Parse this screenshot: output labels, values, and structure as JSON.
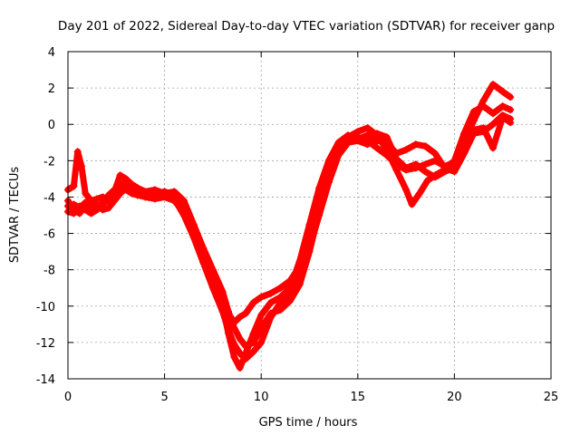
{
  "chart_data": {
    "type": "scatter",
    "title": "Day 201 of 2022, Sidereal Day-to-day VTEC variation (SDTVAR) for receiver ganp",
    "xlabel": "GPS time / hours",
    "ylabel": "SDTVAR / TECUs",
    "xlim": [
      0,
      25
    ],
    "ylim": [
      -14,
      4
    ],
    "xticks": [
      0,
      5,
      10,
      15,
      20,
      25
    ],
    "yticks": [
      -14,
      -12,
      -10,
      -8,
      -6,
      -4,
      -2,
      0,
      2,
      4
    ],
    "grid": true,
    "marker": "plus",
    "color": "#ff0000",
    "series": [
      {
        "points": [
          [
            0,
            -4.5
          ],
          [
            0.3,
            -4.4
          ],
          [
            0.6,
            -4.6
          ],
          [
            0.9,
            -4.3
          ],
          [
            1.2,
            -4.5
          ],
          [
            1.5,
            -4.4
          ],
          [
            1.8,
            -4.7
          ],
          [
            2.1,
            -4.6
          ],
          [
            2.4,
            -4.2
          ],
          [
            2.7,
            -3.8
          ],
          [
            3.0,
            -3.5
          ],
          [
            3.3,
            -3.6
          ],
          [
            3.6,
            -3.7
          ],
          [
            4.0,
            -3.9
          ],
          [
            4.5,
            -3.8
          ],
          [
            5.0,
            -3.7
          ],
          [
            5.5,
            -3.9
          ],
          [
            6.0,
            -4.5
          ],
          [
            6.5,
            -5.8
          ],
          [
            7.0,
            -7.2
          ],
          [
            7.5,
            -8.5
          ],
          [
            8.0,
            -10.0
          ],
          [
            8.3,
            -11.5
          ],
          [
            8.6,
            -12.8
          ],
          [
            8.9,
            -13.4
          ],
          [
            9.2,
            -12.6
          ],
          [
            9.6,
            -11.5
          ],
          [
            10.0,
            -10.5
          ],
          [
            10.5,
            -9.8
          ],
          [
            11.0,
            -9.5
          ],
          [
            11.5,
            -9.0
          ],
          [
            12.0,
            -7.5
          ],
          [
            12.5,
            -5.5
          ],
          [
            13.0,
            -3.5
          ],
          [
            13.5,
            -2.0
          ],
          [
            14.0,
            -1.0
          ],
          [
            14.5,
            -0.6
          ],
          [
            15.0,
            -0.7
          ],
          [
            15.5,
            -0.9
          ],
          [
            16.0,
            -1.3
          ],
          [
            16.5,
            -1.7
          ],
          [
            17.0,
            -2.2
          ],
          [
            17.5,
            -2.5
          ],
          [
            18.0,
            -2.4
          ],
          [
            18.5,
            -2.2
          ],
          [
            19.0,
            -2.0
          ],
          [
            19.5,
            -2.3
          ],
          [
            20.0,
            -2.1
          ],
          [
            20.5,
            -1.0
          ],
          [
            21.0,
            0.2
          ],
          [
            21.5,
            1.3
          ],
          [
            22.0,
            2.2
          ],
          [
            22.5,
            1.8
          ],
          [
            22.9,
            1.5
          ]
        ]
      },
      {
        "points": [
          [
            0,
            -3.6
          ],
          [
            0.3,
            -3.4
          ],
          [
            0.5,
            -1.5
          ],
          [
            0.7,
            -2.3
          ],
          [
            0.9,
            -3.8
          ],
          [
            1.2,
            -4.2
          ],
          [
            1.5,
            -4.1
          ],
          [
            1.8,
            -4.0
          ],
          [
            2.1,
            -4.2
          ],
          [
            2.4,
            -3.7
          ],
          [
            2.7,
            -2.8
          ],
          [
            3.0,
            -3.0
          ],
          [
            3.3,
            -3.3
          ],
          [
            3.6,
            -3.5
          ],
          [
            4.0,
            -3.7
          ],
          [
            4.5,
            -3.6
          ],
          [
            5.0,
            -3.8
          ],
          [
            5.5,
            -3.7
          ],
          [
            6.0,
            -4.2
          ],
          [
            6.5,
            -5.5
          ],
          [
            7.0,
            -6.8
          ],
          [
            7.5,
            -8.0
          ],
          [
            8.0,
            -9.2
          ],
          [
            8.3,
            -10.3
          ],
          [
            8.6,
            -11.2
          ],
          [
            8.9,
            -11.8
          ],
          [
            9.2,
            -12.2
          ],
          [
            9.6,
            -12.0
          ],
          [
            10.0,
            -11.2
          ],
          [
            10.5,
            -10.4
          ],
          [
            11.0,
            -10.2
          ],
          [
            11.5,
            -9.7
          ],
          [
            12.0,
            -8.8
          ],
          [
            12.5,
            -7.0
          ],
          [
            13.0,
            -4.8
          ],
          [
            13.5,
            -2.5
          ],
          [
            14.0,
            -1.2
          ],
          [
            14.5,
            -0.7
          ],
          [
            15.0,
            -0.4
          ],
          [
            15.5,
            -0.2
          ],
          [
            16.0,
            -0.6
          ],
          [
            16.5,
            -1.4
          ],
          [
            17.0,
            -2.5
          ],
          [
            17.5,
            -3.6
          ],
          [
            17.8,
            -4.4
          ],
          [
            18.2,
            -3.8
          ],
          [
            18.6,
            -3.1
          ],
          [
            19.0,
            -2.8
          ],
          [
            19.5,
            -2.5
          ],
          [
            20.0,
            -2.0
          ],
          [
            20.5,
            -0.5
          ],
          [
            21.0,
            0.7
          ],
          [
            21.5,
            1.0
          ],
          [
            22.0,
            0.6
          ],
          [
            22.5,
            1.0
          ],
          [
            22.9,
            0.8
          ]
        ]
      },
      {
        "points": [
          [
            0,
            -4.2
          ],
          [
            0.3,
            -4.7
          ],
          [
            0.6,
            -4.9
          ],
          [
            0.9,
            -4.5
          ],
          [
            1.2,
            -4.4
          ],
          [
            1.5,
            -4.6
          ],
          [
            1.8,
            -4.3
          ],
          [
            2.1,
            -3.9
          ],
          [
            2.4,
            -3.6
          ],
          [
            2.7,
            -3.3
          ],
          [
            3.0,
            -3.2
          ],
          [
            3.3,
            -3.4
          ],
          [
            3.6,
            -3.6
          ],
          [
            4.0,
            -3.8
          ],
          [
            4.5,
            -4.0
          ],
          [
            5.0,
            -3.9
          ],
          [
            5.5,
            -4.1
          ],
          [
            6.0,
            -5.0
          ],
          [
            6.5,
            -6.2
          ],
          [
            7.0,
            -7.6
          ],
          [
            7.5,
            -9.0
          ],
          [
            8.0,
            -10.3
          ],
          [
            8.3,
            -11.3
          ],
          [
            8.6,
            -12.1
          ],
          [
            8.9,
            -12.6
          ],
          [
            9.2,
            -12.9
          ],
          [
            9.6,
            -12.5
          ],
          [
            10.0,
            -12.0
          ],
          [
            10.5,
            -10.6
          ],
          [
            11.0,
            -9.8
          ],
          [
            11.5,
            -9.2
          ],
          [
            12.0,
            -8.2
          ],
          [
            12.5,
            -6.2
          ],
          [
            13.0,
            -4.2
          ],
          [
            13.5,
            -2.8
          ],
          [
            14.0,
            -1.6
          ],
          [
            14.5,
            -0.9
          ],
          [
            15.0,
            -0.8
          ],
          [
            15.5,
            -0.6
          ],
          [
            16.0,
            -0.9
          ],
          [
            16.5,
            -1.0
          ],
          [
            17.0,
            -1.6
          ],
          [
            17.5,
            -1.4
          ],
          [
            18.0,
            -1.1
          ],
          [
            18.5,
            -1.2
          ],
          [
            19.0,
            -1.6
          ],
          [
            19.5,
            -2.4
          ],
          [
            20.0,
            -2.6
          ],
          [
            20.5,
            -1.6
          ],
          [
            21.0,
            -0.5
          ],
          [
            21.5,
            -0.4
          ],
          [
            22.0,
            0.0
          ],
          [
            22.5,
            0.5
          ],
          [
            22.9,
            0.3
          ]
        ]
      },
      {
        "points": [
          [
            0,
            -4.8
          ],
          [
            0.3,
            -4.9
          ],
          [
            0.6,
            -4.5
          ],
          [
            0.9,
            -4.7
          ],
          [
            1.2,
            -4.9
          ],
          [
            1.5,
            -4.7
          ],
          [
            1.8,
            -4.4
          ],
          [
            2.1,
            -4.1
          ],
          [
            2.4,
            -3.8
          ],
          [
            2.7,
            -3.6
          ],
          [
            3.0,
            -3.6
          ],
          [
            3.3,
            -3.8
          ],
          [
            3.6,
            -3.9
          ],
          [
            4.0,
            -4.0
          ],
          [
            4.5,
            -4.1
          ],
          [
            5.0,
            -4.0
          ],
          [
            5.5,
            -4.2
          ],
          [
            6.0,
            -4.8
          ],
          [
            6.5,
            -6.0
          ],
          [
            7.0,
            -7.3
          ],
          [
            7.5,
            -8.7
          ],
          [
            8.0,
            -9.6
          ],
          [
            8.3,
            -10.4
          ],
          [
            8.6,
            -10.9
          ],
          [
            8.9,
            -10.6
          ],
          [
            9.2,
            -10.4
          ],
          [
            9.6,
            -9.8
          ],
          [
            10.0,
            -9.5
          ],
          [
            10.5,
            -9.3
          ],
          [
            11.0,
            -9.0
          ],
          [
            11.5,
            -8.6
          ],
          [
            12.0,
            -7.8
          ],
          [
            12.5,
            -6.8
          ],
          [
            13.0,
            -5.0
          ],
          [
            13.5,
            -3.2
          ],
          [
            14.0,
            -1.7
          ],
          [
            14.5,
            -1.0
          ],
          [
            15.0,
            -0.9
          ],
          [
            15.5,
            -1.1
          ],
          [
            16.0,
            -0.5
          ],
          [
            16.5,
            -0.7
          ],
          [
            17.0,
            -1.9
          ],
          [
            17.5,
            -2.4
          ],
          [
            18.0,
            -2.2
          ],
          [
            18.5,
            -2.6
          ],
          [
            19.0,
            -2.9
          ],
          [
            19.5,
            -2.6
          ],
          [
            20.0,
            -2.4
          ],
          [
            20.5,
            -0.8
          ],
          [
            21.0,
            -0.3
          ],
          [
            21.5,
            -0.2
          ],
          [
            22.0,
            -1.3
          ],
          [
            22.5,
            0.4
          ],
          [
            22.9,
            0.1
          ]
        ]
      }
    ]
  }
}
